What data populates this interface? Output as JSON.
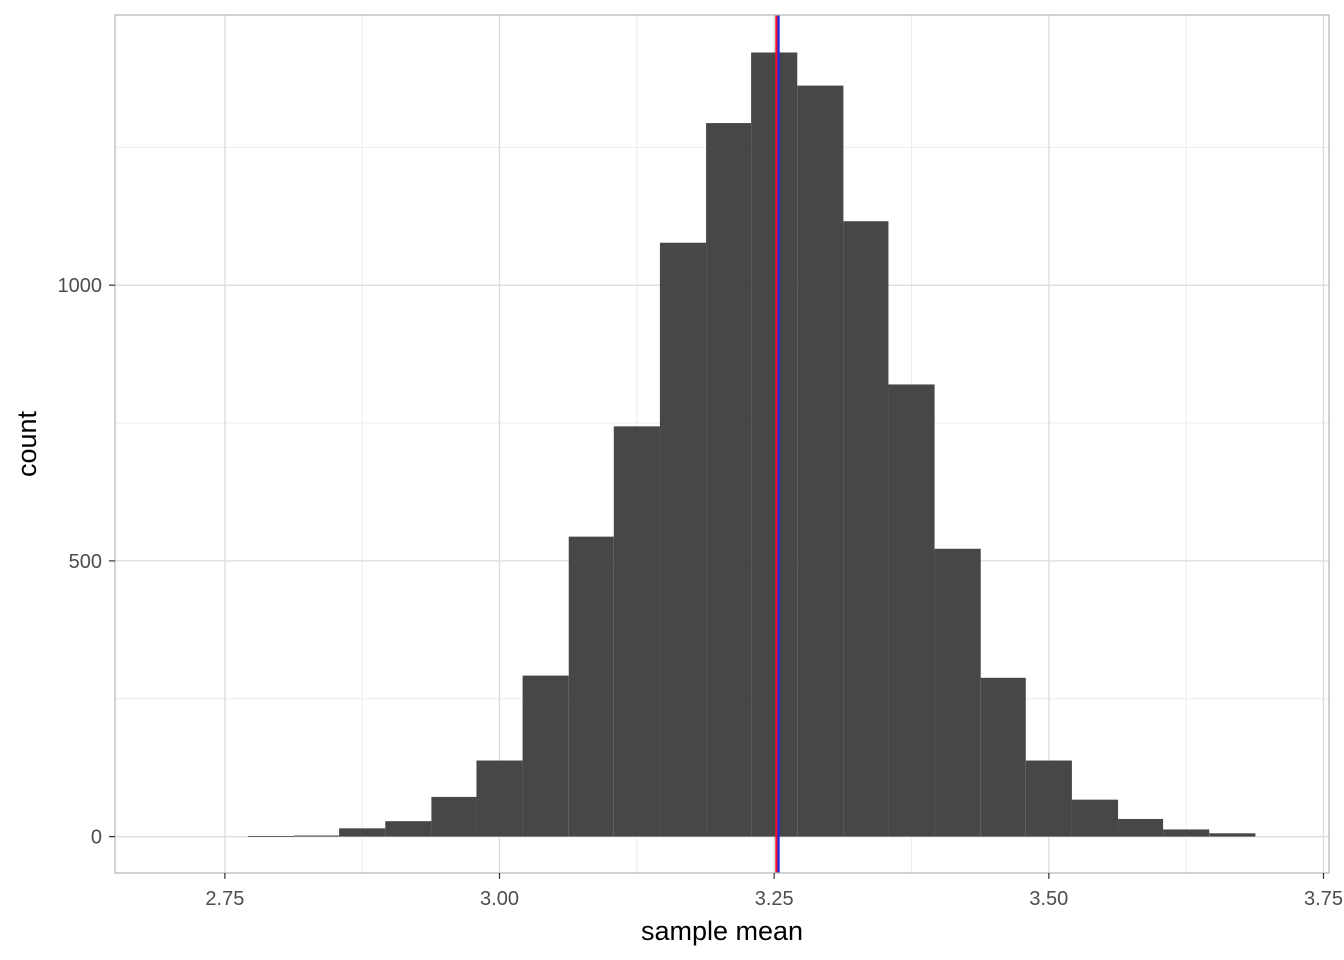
{
  "chart_data": {
    "type": "bar",
    "subtype": "histogram",
    "xlabel": "sample mean",
    "ylabel": "count",
    "xlim": [
      2.65,
      3.755
    ],
    "ylim": [
      -66,
      1490
    ],
    "x_ticks": [
      2.75,
      3.0,
      3.25,
      3.5,
      3.75
    ],
    "x_tick_labels": [
      "2.75",
      "3.00",
      "3.25",
      "3.50",
      "3.75"
    ],
    "y_ticks": [
      0,
      500,
      1000
    ],
    "y_tick_labels": [
      "0",
      "500",
      "1000"
    ],
    "grid": true,
    "bin_width": 0.0417,
    "bins": [
      {
        "x0": 2.771,
        "x1": 2.813,
        "count": 1
      },
      {
        "x0": 2.813,
        "x1": 2.854,
        "count": 2
      },
      {
        "x0": 2.854,
        "x1": 2.896,
        "count": 15
      },
      {
        "x0": 2.896,
        "x1": 2.938,
        "count": 28
      },
      {
        "x0": 2.938,
        "x1": 2.979,
        "count": 72
      },
      {
        "x0": 2.979,
        "x1": 3.021,
        "count": 138
      },
      {
        "x0": 3.021,
        "x1": 3.063,
        "count": 292
      },
      {
        "x0": 3.063,
        "x1": 3.104,
        "count": 544
      },
      {
        "x0": 3.104,
        "x1": 3.146,
        "count": 744
      },
      {
        "x0": 3.146,
        "x1": 3.188,
        "count": 1077
      },
      {
        "x0": 3.188,
        "x1": 3.229,
        "count": 1294
      },
      {
        "x0": 3.229,
        "x1": 3.271,
        "count": 1422
      },
      {
        "x0": 3.271,
        "x1": 3.313,
        "count": 1362
      },
      {
        "x0": 3.313,
        "x1": 3.354,
        "count": 1116
      },
      {
        "x0": 3.354,
        "x1": 3.396,
        "count": 820
      },
      {
        "x0": 3.396,
        "x1": 3.438,
        "count": 522
      },
      {
        "x0": 3.438,
        "x1": 3.479,
        "count": 288
      },
      {
        "x0": 3.479,
        "x1": 3.521,
        "count": 138
      },
      {
        "x0": 3.521,
        "x1": 3.563,
        "count": 67
      },
      {
        "x0": 3.563,
        "x1": 3.604,
        "count": 32
      },
      {
        "x0": 3.604,
        "x1": 3.646,
        "count": 13
      },
      {
        "x0": 3.646,
        "x1": 3.688,
        "count": 6
      }
    ],
    "bar_color": "#474747",
    "reference_lines": [
      {
        "x": 3.252,
        "color": "#e8162c"
      },
      {
        "x": 3.254,
        "color": "#2424e6"
      }
    ],
    "colors": {
      "background": "#ffffff",
      "panel_border": "#b3b3b3",
      "grid_major": "#dcdcdc",
      "grid_minor": "#ececec"
    }
  }
}
